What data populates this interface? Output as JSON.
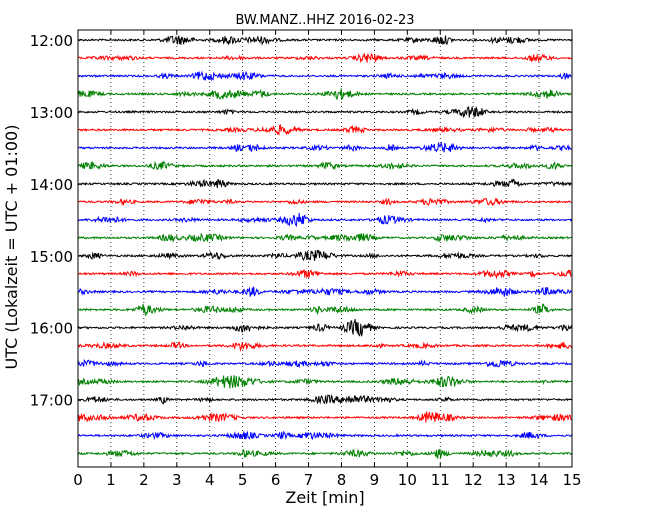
{
  "chart_data": {
    "type": "line",
    "title": "BW.MANZ..HHZ 2016-02-23",
    "xlabel": "Zeit  [min]",
    "ylabel": "UTC (Lokalzeit = UTC + 01:00)",
    "xlim": [
      0,
      15
    ],
    "x_ticks": [
      0,
      1,
      2,
      3,
      4,
      5,
      6,
      7,
      8,
      9,
      10,
      11,
      12,
      13,
      14,
      15
    ],
    "y_ticks": [
      "12:00",
      "13:00",
      "14:00",
      "15:00",
      "16:00",
      "17:00"
    ],
    "grid": "vertical dotted",
    "row_colors": [
      "#000000",
      "#ff0000",
      "#0000ff",
      "#008000"
    ],
    "rows": [
      "12:00",
      "12:15",
      "12:30",
      "12:45",
      "13:00",
      "13:15",
      "13:30",
      "13:45",
      "14:00",
      "14:15",
      "14:30",
      "14:45",
      "15:00",
      "15:15",
      "15:30",
      "15:45",
      "16:00",
      "16:15",
      "16:30",
      "16:45",
      "17:00",
      "17:15",
      "17:30",
      "17:45"
    ]
  }
}
